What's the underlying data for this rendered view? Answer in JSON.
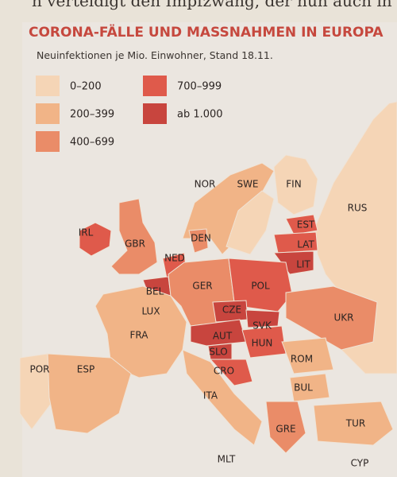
{
  "background_text": {
    "top": "n verteidigt den Impfzwang, der nun auch in Deut"
  },
  "header": {
    "title": "CORONA-FÄLLE UND MASSNAHMEN IN EUROPA",
    "subtitle": "Neuinfektionen je Mio. Einwohner, Stand 18.11."
  },
  "legend": {
    "items": [
      {
        "label": "0–200"
      },
      {
        "label": "200–399"
      },
      {
        "label": "400–699"
      },
      {
        "label": "700–999"
      },
      {
        "label": "ab 1.000"
      }
    ]
  },
  "countries": [
    {
      "label": "NOR"
    },
    {
      "label": "SWE"
    },
    {
      "label": "FIN"
    },
    {
      "label": "RUS"
    },
    {
      "label": "EST"
    },
    {
      "label": "LAT"
    },
    {
      "label": "LIT"
    },
    {
      "label": "IRL"
    },
    {
      "label": "GBR"
    },
    {
      "label": "DEN"
    },
    {
      "label": "NED"
    },
    {
      "label": "BEL"
    },
    {
      "label": "GER"
    },
    {
      "label": "POL"
    },
    {
      "label": "LUX"
    },
    {
      "label": "CZE"
    },
    {
      "label": "SVK"
    },
    {
      "label": "UKR"
    },
    {
      "label": "FRA"
    },
    {
      "label": "AUT"
    },
    {
      "label": "HUN"
    },
    {
      "label": "SLO"
    },
    {
      "label": "ROM"
    },
    {
      "label": "CRO"
    },
    {
      "label": "POR"
    },
    {
      "label": "ESP"
    },
    {
      "label": "BUL"
    },
    {
      "label": "ITA"
    },
    {
      "label": "GRE"
    },
    {
      "label": "TUR"
    },
    {
      "label": "MLT"
    },
    {
      "label": "CYP"
    }
  ]
}
